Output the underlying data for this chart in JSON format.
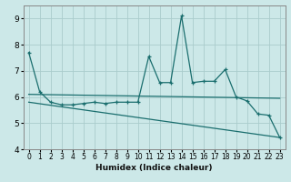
{
  "title": "",
  "xlabel": "Humidex (Indice chaleur)",
  "xlim": [
    -0.5,
    23.5
  ],
  "ylim": [
    4,
    9.5
  ],
  "yticks": [
    4,
    5,
    6,
    7,
    8,
    9
  ],
  "xticks": [
    0,
    1,
    2,
    3,
    4,
    5,
    6,
    7,
    8,
    9,
    10,
    11,
    12,
    13,
    14,
    15,
    16,
    17,
    18,
    19,
    20,
    21,
    22,
    23
  ],
  "background_color": "#cce8e8",
  "grid_color": "#aacccc",
  "line_color": "#1a6e6e",
  "line1_x": [
    0,
    1,
    2,
    3,
    4,
    5,
    6,
    7,
    8,
    9,
    10,
    11,
    12,
    13,
    14,
    15,
    16,
    17,
    18,
    19,
    20,
    21,
    22,
    23
  ],
  "line1_y": [
    7.7,
    6.2,
    5.8,
    5.7,
    5.7,
    5.75,
    5.8,
    5.75,
    5.8,
    5.8,
    5.8,
    7.55,
    6.55,
    6.55,
    9.1,
    6.55,
    6.6,
    6.6,
    7.05,
    6.0,
    5.85,
    5.35,
    5.3,
    4.45
  ],
  "line2_x": [
    0,
    23
  ],
  "line2_y": [
    6.1,
    5.95
  ],
  "line3_x": [
    0,
    23
  ],
  "line3_y": [
    5.8,
    4.45
  ],
  "spine_color": "#888888"
}
